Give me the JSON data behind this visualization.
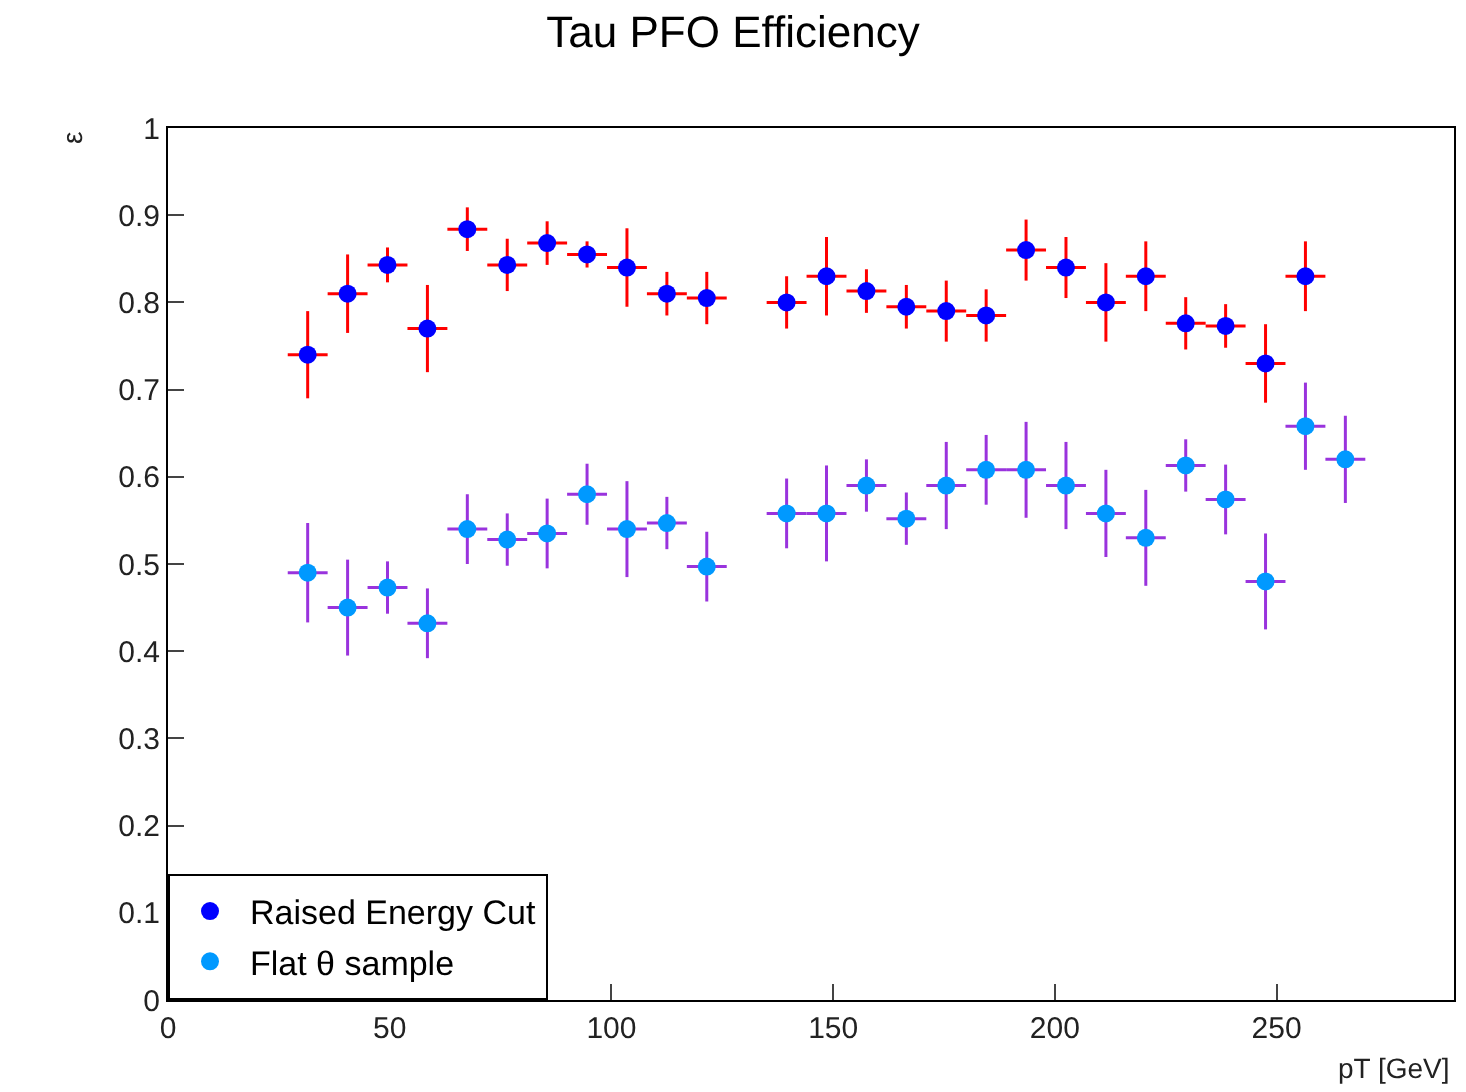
{
  "chart_data": {
    "type": "scatter",
    "title": "Tau PFO Efficiency",
    "xlabel": "pT [GeV]",
    "ylabel": "ε",
    "xlim": [
      0,
      290
    ],
    "xticks": [
      0,
      50,
      100,
      150,
      200,
      250
    ],
    "ylim": [
      0,
      1
    ],
    "yticks": [
      0,
      0.1,
      0.2,
      0.3,
      0.4,
      0.5,
      0.6,
      0.7,
      0.8,
      0.9,
      1
    ],
    "legend": "bottom left",
    "marker": "circle",
    "series": [
      {
        "name": "Raised Energy Cut",
        "color": "#0000ff",
        "x": [
          31.5,
          40.5,
          49.5,
          58.5,
          67.5,
          76.5,
          85.5,
          94.5,
          103.5,
          112.5,
          121.5,
          139.5,
          148.5,
          157.5,
          166.5,
          175.5,
          184.5,
          193.5,
          202.5,
          211.5,
          220.5,
          229.5,
          238.5,
          247.5,
          256.5
        ],
        "values": [
          0.74,
          0.81,
          0.843,
          0.77,
          0.884,
          0.843,
          0.868,
          0.855,
          0.84,
          0.81,
          0.805,
          0.8,
          0.83,
          0.813,
          0.795,
          0.79,
          0.785,
          0.86,
          0.84,
          0.8,
          0.83,
          0.776,
          0.773,
          0.73,
          0.83
        ],
        "errors": [
          0.05,
          0.045,
          0.02,
          0.05,
          0.025,
          0.03,
          0.025,
          0.015,
          0.045,
          0.025,
          0.03,
          0.03,
          0.045,
          0.025,
          0.025,
          0.035,
          0.03,
          0.035,
          0.035,
          0.045,
          0.04,
          0.03,
          0.025,
          0.045,
          0.04
        ],
        "xerrors": [
          4.5,
          4.5,
          4.5,
          4.5,
          4.5,
          4.5,
          4.5,
          4.5,
          4.5,
          4.5,
          4.5,
          4.5,
          4.5,
          4.5,
          4.5,
          4.5,
          4.5,
          4.5,
          4.5,
          4.5,
          4.5,
          4.5,
          4.5,
          4.5,
          4.5
        ]
      },
      {
        "name": "Flat θ sample",
        "color": "#0099ff",
        "x": [
          31.5,
          40.5,
          49.5,
          58.5,
          67.5,
          76.5,
          85.5,
          94.5,
          103.5,
          112.5,
          121.5,
          139.5,
          148.5,
          157.5,
          166.5,
          175.5,
          184.5,
          193.5,
          202.5,
          211.5,
          220.5,
          229.5,
          238.5,
          247.5,
          256.5,
          265.5
        ],
        "values": [
          0.49,
          0.45,
          0.473,
          0.432,
          0.54,
          0.528,
          0.535,
          0.58,
          0.54,
          0.547,
          0.497,
          0.558,
          0.558,
          0.59,
          0.552,
          0.59,
          0.608,
          0.608,
          0.59,
          0.558,
          0.53,
          0.613,
          0.574,
          0.48,
          0.658,
          0.62
        ],
        "errors": [
          0.057,
          0.055,
          0.03,
          0.04,
          0.04,
          0.03,
          0.04,
          0.035,
          0.055,
          0.03,
          0.04,
          0.04,
          0.055,
          0.03,
          0.03,
          0.05,
          0.04,
          0.055,
          0.05,
          0.05,
          0.055,
          0.03,
          0.04,
          0.055,
          0.05,
          0.05
        ],
        "xerrors": [
          4.5,
          4.5,
          4.5,
          4.5,
          4.5,
          4.5,
          4.5,
          4.5,
          4.5,
          4.5,
          4.5,
          4.5,
          4.5,
          4.5,
          4.5,
          4.5,
          4.5,
          4.5,
          4.5,
          4.5,
          4.5,
          4.5,
          4.5,
          4.5,
          4.5,
          4.5
        ]
      }
    ]
  }
}
